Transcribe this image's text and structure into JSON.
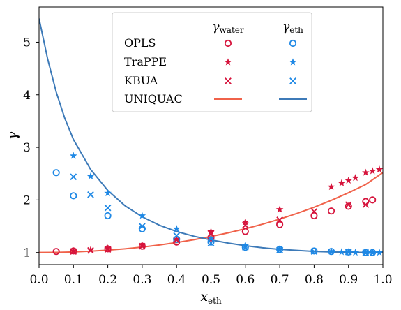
{
  "chart_data": {
    "type": "scatter",
    "xlabel": "x",
    "xlabel_sub": "eth",
    "ylabel": "γ",
    "xlim": [
      0,
      1
    ],
    "ylim": [
      0.77,
      5.67
    ],
    "xticks": [
      0.0,
      0.1,
      0.2,
      0.3,
      0.4,
      0.5,
      0.6,
      0.7,
      0.8,
      0.9,
      1.0
    ],
    "xtick_labels": [
      "0.0",
      "0.1",
      "0.2",
      "0.3",
      "0.4",
      "0.5",
      "0.6",
      "0.7",
      "0.8",
      "0.9",
      "1.0"
    ],
    "yticks": [
      1,
      2,
      3,
      4,
      5
    ],
    "ytick_labels": [
      "1",
      "2",
      "3",
      "4",
      "5"
    ],
    "grid": false,
    "legend": {
      "placement": "top-center",
      "col_headers": [
        {
          "main": "γ",
          "sub": "water"
        },
        {
          "main": "γ",
          "sub": "eth"
        }
      ],
      "rows": [
        {
          "label": "OPLS",
          "marker": "circle"
        },
        {
          "label": "TraPPE",
          "marker": "star"
        },
        {
          "label": "KBUA",
          "marker": "cross"
        },
        {
          "label": "UNIQUAC",
          "marker": "line"
        }
      ]
    },
    "colors": {
      "water": "#d6143c",
      "eth": "#1e88e5",
      "water_line": "#f0624a",
      "eth_line": "#3d7ab8"
    },
    "series": [
      {
        "model": "OPLS",
        "component": "water",
        "marker": "circle",
        "x": [
          0.05,
          0.1,
          0.2,
          0.3,
          0.4,
          0.5,
          0.6,
          0.7,
          0.8,
          0.85,
          0.9,
          0.95,
          0.97
        ],
        "y": [
          1.02,
          1.03,
          1.07,
          1.12,
          1.2,
          1.28,
          1.4,
          1.53,
          1.7,
          1.79,
          1.88,
          1.97,
          2.0
        ]
      },
      {
        "model": "OPLS",
        "component": "eth",
        "marker": "circle",
        "x": [
          0.05,
          0.1,
          0.2,
          0.3,
          0.4,
          0.5,
          0.6,
          0.7,
          0.8,
          0.85,
          0.9,
          0.95,
          0.97
        ],
        "y": [
          2.52,
          2.08,
          1.7,
          1.45,
          1.25,
          1.2,
          1.1,
          1.06,
          1.03,
          1.02,
          1.01,
          1.0,
          1.0
        ]
      },
      {
        "model": "TraPPE",
        "component": "water",
        "marker": "star",
        "x": [
          0.1,
          0.15,
          0.2,
          0.3,
          0.4,
          0.5,
          0.6,
          0.7,
          0.85,
          0.88,
          0.9,
          0.92,
          0.95,
          0.97,
          0.99
        ],
        "y": [
          1.03,
          1.05,
          1.08,
          1.14,
          1.25,
          1.4,
          1.58,
          1.82,
          2.25,
          2.32,
          2.37,
          2.42,
          2.52,
          2.55,
          2.58
        ]
      },
      {
        "model": "TraPPE",
        "component": "eth",
        "marker": "star",
        "x": [
          0.1,
          0.15,
          0.2,
          0.3,
          0.4,
          0.5,
          0.6,
          0.7,
          0.85,
          0.88,
          0.9,
          0.92,
          0.95,
          0.97,
          0.99
        ],
        "y": [
          2.84,
          2.45,
          2.13,
          1.7,
          1.45,
          1.27,
          1.14,
          1.07,
          1.02,
          1.01,
          1.01,
          1.0,
          1.0,
          1.0,
          1.0
        ]
      },
      {
        "model": "KBUA",
        "component": "water",
        "marker": "cross",
        "x": [
          0.1,
          0.15,
          0.2,
          0.3,
          0.4,
          0.5,
          0.6,
          0.7,
          0.8,
          0.9,
          0.95
        ],
        "y": [
          1.02,
          1.04,
          1.06,
          1.12,
          1.24,
          1.36,
          1.52,
          1.62,
          1.78,
          1.91,
          1.91
        ]
      },
      {
        "model": "KBUA",
        "component": "eth",
        "marker": "cross",
        "x": [
          0.1,
          0.15,
          0.2,
          0.3,
          0.4,
          0.5,
          0.6,
          0.7,
          0.8,
          0.9,
          0.95
        ],
        "y": [
          2.44,
          2.1,
          1.85,
          1.5,
          1.32,
          1.18,
          1.1,
          1.05,
          1.02,
          1.01,
          1.0
        ]
      }
    ],
    "curves": [
      {
        "model": "UNIQUAC",
        "component": "water",
        "x": [
          0,
          0.05,
          0.1,
          0.15,
          0.2,
          0.25,
          0.3,
          0.35,
          0.4,
          0.45,
          0.5,
          0.55,
          0.6,
          0.65,
          0.7,
          0.75,
          0.8,
          0.85,
          0.9,
          0.95,
          1.0
        ],
        "y": [
          1.0,
          1.003,
          1.011,
          1.025,
          1.045,
          1.071,
          1.104,
          1.143,
          1.19,
          1.243,
          1.304,
          1.374,
          1.452,
          1.539,
          1.636,
          1.744,
          1.862,
          1.993,
          2.137,
          2.294,
          2.52
        ]
      },
      {
        "model": "UNIQUAC",
        "component": "eth",
        "x": [
          0,
          0.025,
          0.05,
          0.075,
          0.1,
          0.15,
          0.2,
          0.25,
          0.3,
          0.35,
          0.4,
          0.45,
          0.5,
          0.55,
          0.6,
          0.65,
          0.7,
          0.75,
          0.8,
          0.85,
          0.9,
          0.95,
          1.0
        ],
        "y": [
          5.45,
          4.68,
          4.05,
          3.55,
          3.15,
          2.58,
          2.18,
          1.89,
          1.68,
          1.52,
          1.4,
          1.31,
          1.24,
          1.18,
          1.13,
          1.09,
          1.06,
          1.04,
          1.02,
          1.01,
          1.005,
          1.001,
          1.0
        ]
      }
    ]
  }
}
